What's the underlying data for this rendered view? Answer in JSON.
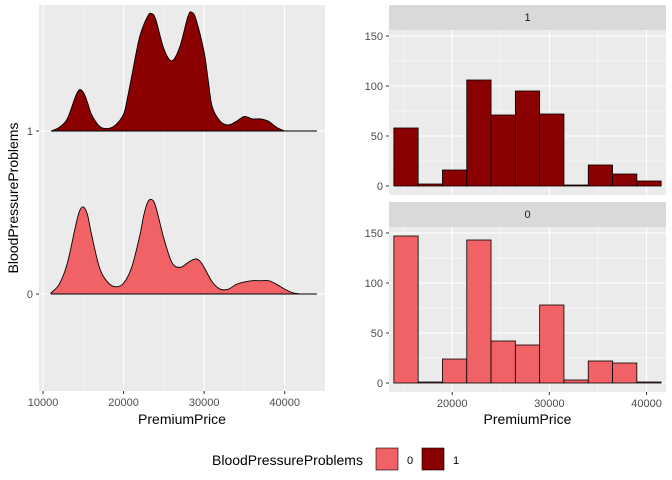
{
  "colors": {
    "group_0": "#F06266",
    "group_1": "#8B0000",
    "panel_bg": "#EBEBEB",
    "strip_bg": "#D9D9D9",
    "grid": "#FFFFFF"
  },
  "legend": {
    "title": "BloodPressureProblems",
    "items": [
      "0",
      "1"
    ]
  },
  "chart_data": [
    {
      "type": "area",
      "subtype": "ridgeline-density",
      "xlabel": "PremiumPrice",
      "ylabel": "BloodPressureProblems",
      "xlim": [
        9500,
        45000
      ],
      "x_ticks": [
        10000,
        20000,
        30000,
        40000
      ],
      "y_ticks": [
        "0",
        "1"
      ],
      "grid": true,
      "series": [
        {
          "name": "0",
          "x": [
            11000,
            12000,
            13000,
            14000,
            14500,
            15000,
            15500,
            16000,
            17000,
            18000,
            19000,
            20000,
            21000,
            22000,
            22500,
            23000,
            23500,
            24000,
            25000,
            26000,
            27000,
            28000,
            28500,
            29000,
            29500,
            30000,
            31000,
            32000,
            33000,
            34000,
            35000,
            36000,
            37000,
            38000,
            39000,
            40000,
            41000,
            42000
          ],
          "values": [
            0.01,
            0.08,
            0.25,
            0.55,
            0.68,
            0.72,
            0.66,
            0.5,
            0.22,
            0.1,
            0.06,
            0.09,
            0.22,
            0.48,
            0.65,
            0.76,
            0.78,
            0.72,
            0.46,
            0.26,
            0.22,
            0.26,
            0.28,
            0.29,
            0.27,
            0.22,
            0.1,
            0.04,
            0.04,
            0.08,
            0.1,
            0.11,
            0.11,
            0.11,
            0.08,
            0.04,
            0.01,
            0.0
          ]
        },
        {
          "name": "1",
          "x": [
            11000,
            12000,
            13000,
            14000,
            14500,
            15000,
            15500,
            16000,
            17000,
            18000,
            19000,
            20000,
            20500,
            21000,
            22000,
            23000,
            23500,
            24000,
            25000,
            26000,
            27000,
            28000,
            28500,
            29000,
            30000,
            30500,
            31000,
            32000,
            33000,
            34000,
            35000,
            36000,
            37000,
            38000,
            39000,
            40000
          ],
          "values": [
            0.0,
            0.03,
            0.1,
            0.28,
            0.34,
            0.32,
            0.24,
            0.14,
            0.04,
            0.02,
            0.05,
            0.14,
            0.28,
            0.45,
            0.78,
            0.95,
            0.97,
            0.92,
            0.68,
            0.58,
            0.7,
            0.95,
            0.98,
            0.92,
            0.65,
            0.42,
            0.2,
            0.08,
            0.05,
            0.08,
            0.12,
            0.1,
            0.1,
            0.08,
            0.03,
            0.0
          ]
        }
      ]
    },
    {
      "type": "bar",
      "subtype": "histogram",
      "facet": "1",
      "xlim": [
        13500,
        42000
      ],
      "ylim": [
        0,
        150
      ],
      "y_ticks": [
        0,
        50,
        100,
        150
      ],
      "grid": true,
      "bins": [
        {
          "x0": 14000,
          "x1": 16500,
          "count": 58
        },
        {
          "x0": 16500,
          "x1": 19000,
          "count": 2
        },
        {
          "x0": 19000,
          "x1": 21500,
          "count": 16
        },
        {
          "x0": 21500,
          "x1": 24000,
          "count": 106
        },
        {
          "x0": 24000,
          "x1": 26500,
          "count": 71
        },
        {
          "x0": 26500,
          "x1": 29000,
          "count": 95
        },
        {
          "x0": 29000,
          "x1": 31500,
          "count": 72
        },
        {
          "x0": 31500,
          "x1": 34000,
          "count": 1
        },
        {
          "x0": 34000,
          "x1": 36500,
          "count": 21
        },
        {
          "x0": 36500,
          "x1": 39000,
          "count": 12
        },
        {
          "x0": 39000,
          "x1": 41500,
          "count": 5
        }
      ]
    },
    {
      "type": "bar",
      "subtype": "histogram",
      "facet": "0",
      "xlabel": "PremiumPrice",
      "xlim": [
        13500,
        42000
      ],
      "ylim": [
        0,
        150
      ],
      "x_ticks": [
        20000,
        30000,
        40000
      ],
      "y_ticks": [
        0,
        50,
        100,
        150
      ],
      "grid": true,
      "bins": [
        {
          "x0": 14000,
          "x1": 16500,
          "count": 147
        },
        {
          "x0": 16500,
          "x1": 19000,
          "count": 1
        },
        {
          "x0": 19000,
          "x1": 21500,
          "count": 24
        },
        {
          "x0": 21500,
          "x1": 24000,
          "count": 143
        },
        {
          "x0": 24000,
          "x1": 26500,
          "count": 42
        },
        {
          "x0": 26500,
          "x1": 29000,
          "count": 38
        },
        {
          "x0": 29000,
          "x1": 31500,
          "count": 78
        },
        {
          "x0": 31500,
          "x1": 34000,
          "count": 3
        },
        {
          "x0": 34000,
          "x1": 36500,
          "count": 22
        },
        {
          "x0": 36500,
          "x1": 39000,
          "count": 20
        },
        {
          "x0": 39000,
          "x1": 41500,
          "count": 1
        }
      ]
    }
  ]
}
